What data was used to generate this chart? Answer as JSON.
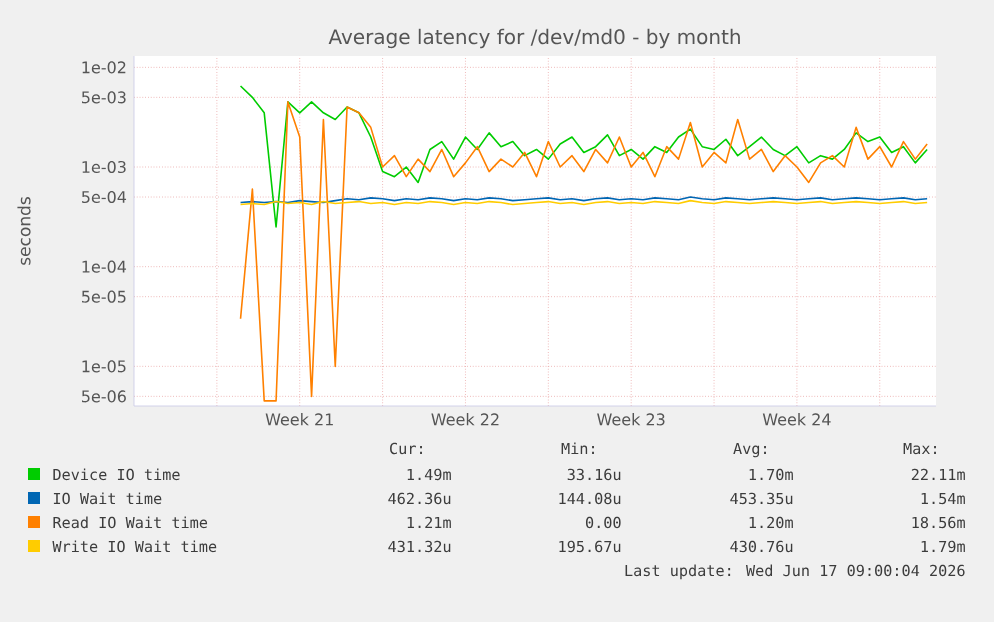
{
  "chart_data": {
    "type": "line",
    "title": "Average latency for /dev/md0 - by month",
    "ylabel": "seconds",
    "log": "y",
    "grid": true,
    "legend": "bottom",
    "marker": "none",
    "line_style": "solid",
    "xlim": [
      "2026-05-14T12:00",
      "2026-06-17T09:00"
    ],
    "xticks": [
      {
        "value": "2026-05-18T00:00",
        "label": null
      },
      {
        "value": "2026-05-21T12:00",
        "label": "Week 21"
      },
      {
        "value": "2026-05-25T00:00",
        "label": null
      },
      {
        "value": "2026-05-28T12:00",
        "label": "Week 22"
      },
      {
        "value": "2026-06-01T00:00",
        "label": null
      },
      {
        "value": "2026-06-04T12:00",
        "label": "Week 23"
      },
      {
        "value": "2026-06-08T00:00",
        "label": null
      },
      {
        "value": "2026-06-11T12:00",
        "label": "Week 24"
      },
      {
        "value": "2026-06-15T00:00",
        "label": null
      }
    ],
    "ylim": [
      4e-06,
      0.013
    ],
    "yticks": [
      {
        "value": 5e-06,
        "label": "5e-06"
      },
      {
        "value": 1e-05,
        "label": "1e-05"
      },
      {
        "value": 5e-05,
        "label": "5e-05"
      },
      {
        "value": 0.0001,
        "label": "1e-04"
      },
      {
        "value": 0.0005,
        "label": "5e-04"
      },
      {
        "value": 0.001,
        "label": "1e-03"
      },
      {
        "value": 0.005,
        "label": "5e-03"
      },
      {
        "value": 0.01,
        "label": "1e-02"
      }
    ],
    "x": [
      "2026-05-19T00:00",
      "2026-05-19T12:00",
      "2026-05-20T00:00",
      "2026-05-20T12:00",
      "2026-05-21T00:00",
      "2026-05-21T12:00",
      "2026-05-22T00:00",
      "2026-05-22T12:00",
      "2026-05-23T00:00",
      "2026-05-23T12:00",
      "2026-05-24T00:00",
      "2026-05-24T12:00",
      "2026-05-25T00:00",
      "2026-05-25T12:00",
      "2026-05-26T00:00",
      "2026-05-26T12:00",
      "2026-05-27T00:00",
      "2026-05-27T12:00",
      "2026-05-28T00:00",
      "2026-05-28T12:00",
      "2026-05-29T00:00",
      "2026-05-29T12:00",
      "2026-05-30T00:00",
      "2026-05-30T12:00",
      "2026-05-31T00:00",
      "2026-05-31T12:00",
      "2026-06-01T00:00",
      "2026-06-01T12:00",
      "2026-06-02T00:00",
      "2026-06-02T12:00",
      "2026-06-03T00:00",
      "2026-06-03T12:00",
      "2026-06-04T00:00",
      "2026-06-04T12:00",
      "2026-06-05T00:00",
      "2026-06-05T12:00",
      "2026-06-06T00:00",
      "2026-06-06T12:00",
      "2026-06-07T00:00",
      "2026-06-07T12:00",
      "2026-06-08T00:00",
      "2026-06-08T12:00",
      "2026-06-09T00:00",
      "2026-06-09T12:00",
      "2026-06-10T00:00",
      "2026-06-10T12:00",
      "2026-06-11T00:00",
      "2026-06-11T12:00",
      "2026-06-12T00:00",
      "2026-06-12T12:00",
      "2026-06-13T00:00",
      "2026-06-13T12:00",
      "2026-06-14T00:00",
      "2026-06-14T12:00",
      "2026-06-15T00:00",
      "2026-06-15T12:00",
      "2026-06-16T00:00",
      "2026-06-16T12:00",
      "2026-06-17T00:00"
    ],
    "series": [
      {
        "name": "Device IO time",
        "color": "#00cc00",
        "values": [
          0.0065,
          0.005,
          0.0035,
          0.00025,
          0.0045,
          0.0035,
          0.0045,
          0.0035,
          0.003,
          0.004,
          0.0035,
          0.002,
          0.0009,
          0.0008,
          0.001,
          0.0007,
          0.0015,
          0.0018,
          0.0012,
          0.002,
          0.0015,
          0.0022,
          0.0016,
          0.0018,
          0.0013,
          0.0015,
          0.0012,
          0.0017,
          0.002,
          0.0014,
          0.0016,
          0.0021,
          0.0013,
          0.0015,
          0.0012,
          0.0016,
          0.0014,
          0.002,
          0.0024,
          0.0016,
          0.0015,
          0.0019,
          0.0013,
          0.0016,
          0.002,
          0.0015,
          0.0013,
          0.0016,
          0.0011,
          0.0013,
          0.0012,
          0.0015,
          0.0022,
          0.0018,
          0.002,
          0.0014,
          0.0016,
          0.0011,
          0.0015
        ]
      },
      {
        "name": "IO Wait time",
        "color": "#0066b3",
        "values": [
          0.00044,
          0.00045,
          0.00044,
          0.00045,
          0.00044,
          0.00046,
          0.00045,
          0.00044,
          0.00046,
          0.00048,
          0.00047,
          0.00049,
          0.00048,
          0.00046,
          0.00048,
          0.00047,
          0.00049,
          0.00048,
          0.00046,
          0.00048,
          0.00047,
          0.00049,
          0.00048,
          0.00046,
          0.00047,
          0.00048,
          0.00049,
          0.00047,
          0.00048,
          0.00046,
          0.00048,
          0.00049,
          0.00047,
          0.00048,
          0.00047,
          0.00049,
          0.00048,
          0.00047,
          0.0005,
          0.00048,
          0.00047,
          0.00049,
          0.00048,
          0.00047,
          0.00048,
          0.00049,
          0.00048,
          0.00047,
          0.00048,
          0.00049,
          0.00047,
          0.00048,
          0.00049,
          0.00048,
          0.00047,
          0.00048,
          0.00049,
          0.00047,
          0.00048
        ]
      },
      {
        "name": "Read IO Wait time",
        "color": "#ff8000",
        "values": [
          3e-05,
          0.0006,
          4.5e-06,
          4.5e-06,
          0.0045,
          0.002,
          5e-06,
          0.003,
          1e-05,
          0.004,
          0.0035,
          0.0025,
          0.001,
          0.0013,
          0.0008,
          0.0012,
          0.0009,
          0.0015,
          0.0008,
          0.0011,
          0.0016,
          0.0009,
          0.0012,
          0.001,
          0.0014,
          0.0008,
          0.0018,
          0.001,
          0.0013,
          0.0009,
          0.0015,
          0.0011,
          0.002,
          0.001,
          0.0014,
          0.0008,
          0.0016,
          0.0012,
          0.0028,
          0.001,
          0.0014,
          0.0011,
          0.003,
          0.0012,
          0.0015,
          0.0009,
          0.0013,
          0.001,
          0.0007,
          0.0011,
          0.0013,
          0.001,
          0.0025,
          0.0012,
          0.0016,
          0.001,
          0.0018,
          0.0012,
          0.0017
        ]
      },
      {
        "name": "Write IO Wait time",
        "color": "#ffcc00",
        "values": [
          0.00042,
          0.00043,
          0.00042,
          0.00045,
          0.00043,
          0.00044,
          0.00042,
          0.00045,
          0.00043,
          0.00044,
          0.00045,
          0.00043,
          0.00044,
          0.00042,
          0.00044,
          0.00043,
          0.00045,
          0.00044,
          0.00042,
          0.00044,
          0.00043,
          0.00045,
          0.00044,
          0.00042,
          0.00043,
          0.00044,
          0.00045,
          0.00043,
          0.00044,
          0.00042,
          0.00044,
          0.00045,
          0.00043,
          0.00044,
          0.00043,
          0.00045,
          0.00044,
          0.00043,
          0.00046,
          0.00044,
          0.00043,
          0.00045,
          0.00044,
          0.00043,
          0.00044,
          0.00045,
          0.00044,
          0.00043,
          0.00044,
          0.00045,
          0.00043,
          0.00044,
          0.00045,
          0.00044,
          0.00043,
          0.00044,
          0.00045,
          0.00043,
          0.00044
        ]
      }
    ],
    "annotations": [
      "Cur:",
      "Min:",
      "Avg:",
      "Max:",
      "1.49m",
      "33.16u",
      "1.70m",
      "22.11m",
      "462.36u",
      "144.08u",
      "453.35u",
      "1.54m",
      "1.21m",
      "0.00",
      "1.20m",
      "18.56m",
      "431.32u",
      "195.67u",
      "430.76u",
      "1.79m",
      "Last update: Wed Jun 17 09:00:04 2026"
    ]
  }
}
